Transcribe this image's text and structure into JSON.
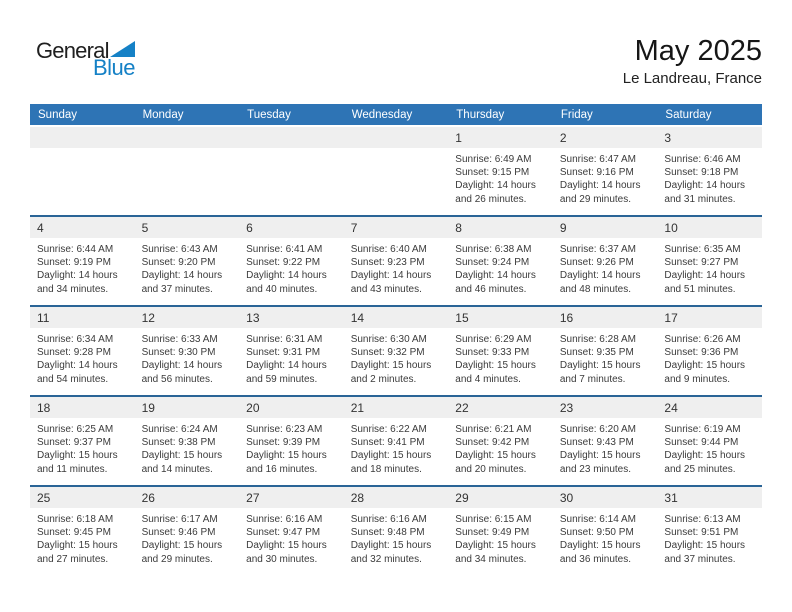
{
  "logo": {
    "general": "General",
    "blue": "Blue"
  },
  "header": {
    "title": "May 2025",
    "subtitle": "Le Landreau, France"
  },
  "colors": {
    "header_blue": "#2e74b5",
    "week_border_blue": "#2a6496",
    "day_band_gray": "#efefef",
    "logo_blue": "#1581c6",
    "text_dark": "#3b3b3b"
  },
  "calendar": {
    "weekdays": [
      "Sunday",
      "Monday",
      "Tuesday",
      "Wednesday",
      "Thursday",
      "Friday",
      "Saturday"
    ],
    "weeks": [
      [
        {
          "day": "",
          "lines": []
        },
        {
          "day": "",
          "lines": []
        },
        {
          "day": "",
          "lines": []
        },
        {
          "day": "",
          "lines": []
        },
        {
          "day": "1",
          "lines": [
            "Sunrise: 6:49 AM",
            "Sunset: 9:15 PM",
            "Daylight: 14 hours",
            "and 26 minutes."
          ]
        },
        {
          "day": "2",
          "lines": [
            "Sunrise: 6:47 AM",
            "Sunset: 9:16 PM",
            "Daylight: 14 hours",
            "and 29 minutes."
          ]
        },
        {
          "day": "3",
          "lines": [
            "Sunrise: 6:46 AM",
            "Sunset: 9:18 PM",
            "Daylight: 14 hours",
            "and 31 minutes."
          ]
        }
      ],
      [
        {
          "day": "4",
          "lines": [
            "Sunrise: 6:44 AM",
            "Sunset: 9:19 PM",
            "Daylight: 14 hours",
            "and 34 minutes."
          ]
        },
        {
          "day": "5",
          "lines": [
            "Sunrise: 6:43 AM",
            "Sunset: 9:20 PM",
            "Daylight: 14 hours",
            "and 37 minutes."
          ]
        },
        {
          "day": "6",
          "lines": [
            "Sunrise: 6:41 AM",
            "Sunset: 9:22 PM",
            "Daylight: 14 hours",
            "and 40 minutes."
          ]
        },
        {
          "day": "7",
          "lines": [
            "Sunrise: 6:40 AM",
            "Sunset: 9:23 PM",
            "Daylight: 14 hours",
            "and 43 minutes."
          ]
        },
        {
          "day": "8",
          "lines": [
            "Sunrise: 6:38 AM",
            "Sunset: 9:24 PM",
            "Daylight: 14 hours",
            "and 46 minutes."
          ]
        },
        {
          "day": "9",
          "lines": [
            "Sunrise: 6:37 AM",
            "Sunset: 9:26 PM",
            "Daylight: 14 hours",
            "and 48 minutes."
          ]
        },
        {
          "day": "10",
          "lines": [
            "Sunrise: 6:35 AM",
            "Sunset: 9:27 PM",
            "Daylight: 14 hours",
            "and 51 minutes."
          ]
        }
      ],
      [
        {
          "day": "11",
          "lines": [
            "Sunrise: 6:34 AM",
            "Sunset: 9:28 PM",
            "Daylight: 14 hours",
            "and 54 minutes."
          ]
        },
        {
          "day": "12",
          "lines": [
            "Sunrise: 6:33 AM",
            "Sunset: 9:30 PM",
            "Daylight: 14 hours",
            "and 56 minutes."
          ]
        },
        {
          "day": "13",
          "lines": [
            "Sunrise: 6:31 AM",
            "Sunset: 9:31 PM",
            "Daylight: 14 hours",
            "and 59 minutes."
          ]
        },
        {
          "day": "14",
          "lines": [
            "Sunrise: 6:30 AM",
            "Sunset: 9:32 PM",
            "Daylight: 15 hours",
            "and 2 minutes."
          ]
        },
        {
          "day": "15",
          "lines": [
            "Sunrise: 6:29 AM",
            "Sunset: 9:33 PM",
            "Daylight: 15 hours",
            "and 4 minutes."
          ]
        },
        {
          "day": "16",
          "lines": [
            "Sunrise: 6:28 AM",
            "Sunset: 9:35 PM",
            "Daylight: 15 hours",
            "and 7 minutes."
          ]
        },
        {
          "day": "17",
          "lines": [
            "Sunrise: 6:26 AM",
            "Sunset: 9:36 PM",
            "Daylight: 15 hours",
            "and 9 minutes."
          ]
        }
      ],
      [
        {
          "day": "18",
          "lines": [
            "Sunrise: 6:25 AM",
            "Sunset: 9:37 PM",
            "Daylight: 15 hours",
            "and 11 minutes."
          ]
        },
        {
          "day": "19",
          "lines": [
            "Sunrise: 6:24 AM",
            "Sunset: 9:38 PM",
            "Daylight: 15 hours",
            "and 14 minutes."
          ]
        },
        {
          "day": "20",
          "lines": [
            "Sunrise: 6:23 AM",
            "Sunset: 9:39 PM",
            "Daylight: 15 hours",
            "and 16 minutes."
          ]
        },
        {
          "day": "21",
          "lines": [
            "Sunrise: 6:22 AM",
            "Sunset: 9:41 PM",
            "Daylight: 15 hours",
            "and 18 minutes."
          ]
        },
        {
          "day": "22",
          "lines": [
            "Sunrise: 6:21 AM",
            "Sunset: 9:42 PM",
            "Daylight: 15 hours",
            "and 20 minutes."
          ]
        },
        {
          "day": "23",
          "lines": [
            "Sunrise: 6:20 AM",
            "Sunset: 9:43 PM",
            "Daylight: 15 hours",
            "and 23 minutes."
          ]
        },
        {
          "day": "24",
          "lines": [
            "Sunrise: 6:19 AM",
            "Sunset: 9:44 PM",
            "Daylight: 15 hours",
            "and 25 minutes."
          ]
        }
      ],
      [
        {
          "day": "25",
          "lines": [
            "Sunrise: 6:18 AM",
            "Sunset: 9:45 PM",
            "Daylight: 15 hours",
            "and 27 minutes."
          ]
        },
        {
          "day": "26",
          "lines": [
            "Sunrise: 6:17 AM",
            "Sunset: 9:46 PM",
            "Daylight: 15 hours",
            "and 29 minutes."
          ]
        },
        {
          "day": "27",
          "lines": [
            "Sunrise: 6:16 AM",
            "Sunset: 9:47 PM",
            "Daylight: 15 hours",
            "and 30 minutes."
          ]
        },
        {
          "day": "28",
          "lines": [
            "Sunrise: 6:16 AM",
            "Sunset: 9:48 PM",
            "Daylight: 15 hours",
            "and 32 minutes."
          ]
        },
        {
          "day": "29",
          "lines": [
            "Sunrise: 6:15 AM",
            "Sunset: 9:49 PM",
            "Daylight: 15 hours",
            "and 34 minutes."
          ]
        },
        {
          "day": "30",
          "lines": [
            "Sunrise: 6:14 AM",
            "Sunset: 9:50 PM",
            "Daylight: 15 hours",
            "and 36 minutes."
          ]
        },
        {
          "day": "31",
          "lines": [
            "Sunrise: 6:13 AM",
            "Sunset: 9:51 PM",
            "Daylight: 15 hours",
            "and 37 minutes."
          ]
        }
      ]
    ]
  }
}
